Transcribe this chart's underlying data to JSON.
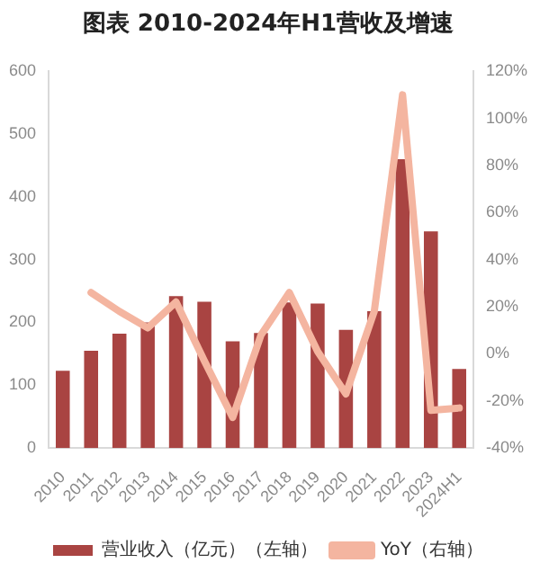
{
  "chart_data": {
    "type": "bar",
    "title": "图表 2010-2024年H1营收及增速",
    "categories": [
      "2010",
      "2011",
      "2012",
      "2013",
      "2014",
      "2015",
      "2016",
      "2017",
      "2018",
      "2019",
      "2020",
      "2021",
      "2022",
      "2023",
      "2024H1"
    ],
    "series": [
      {
        "name": "营业收入（亿元）（左轴）",
        "color": "#a94442",
        "values": [
          123,
          155,
          182,
          200,
          242,
          233,
          170,
          183,
          232,
          230,
          188,
          218,
          460,
          345,
          126
        ]
      },
      {
        "name": "YoY（右轴）",
        "type": "line",
        "axis": "y2",
        "color": "#f4b5a0",
        "values": [
          null,
          26,
          18,
          11,
          22,
          -3,
          -27,
          8,
          26,
          1,
          -17,
          18,
          110,
          -24,
          -23
        ]
      }
    ],
    "ylim": [
      0,
      600
    ],
    "yticks": [
      0,
      100,
      200,
      300,
      400,
      500,
      600
    ],
    "y2lim": [
      -40,
      120
    ],
    "y2ticks": [
      {
        "value": -40,
        "label": "-40%"
      },
      {
        "value": -20,
        "label": "-20%"
      },
      {
        "value": 0,
        "label": "0%"
      },
      {
        "value": 20,
        "label": "20%"
      },
      {
        "value": 40,
        "label": "40%"
      },
      {
        "value": 60,
        "label": "60%"
      },
      {
        "value": 80,
        "label": "80%"
      },
      {
        "value": 100,
        "label": "100%"
      },
      {
        "value": 120,
        "label": "120%"
      }
    ],
    "grid": false,
    "legend": "bottom",
    "marker": "none",
    "line_style": "solid"
  }
}
